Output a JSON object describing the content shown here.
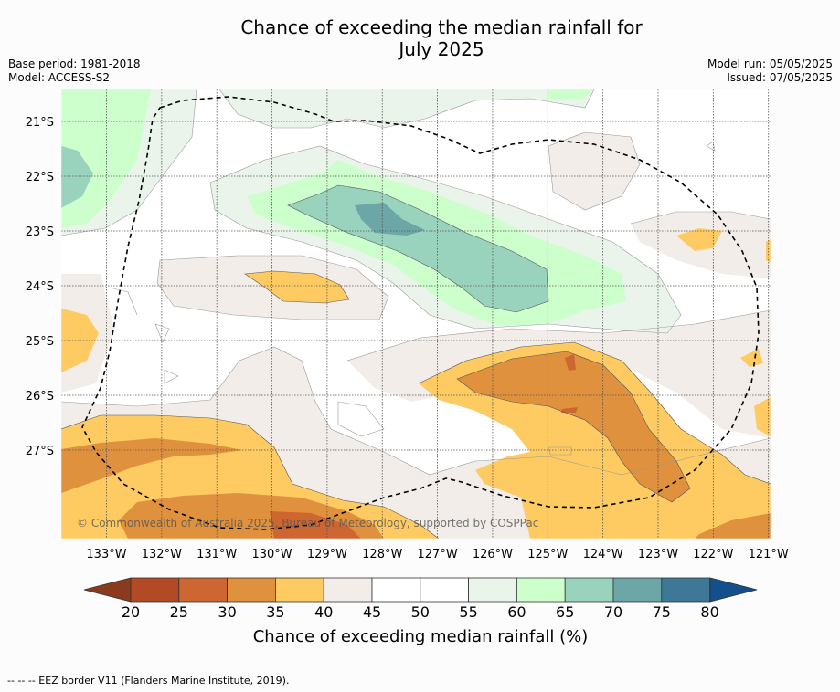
{
  "header": {
    "title_line1": "Chance of exceeding the median rainfall for",
    "title_line2": "July 2025"
  },
  "meta_left": {
    "base_period": "Base period: 1981-2018",
    "model": "Model: ACCESS-S2"
  },
  "meta_right": {
    "model_run": "Model run: 05/05/2025",
    "issued": "Issued: 07/05/2025"
  },
  "map": {
    "lon_labels": [
      "133°W",
      "132°W",
      "131°W",
      "130°W",
      "129°W",
      "128°W",
      "127°W",
      "126°W",
      "125°W",
      "124°W",
      "123°W",
      "122°W",
      "121°W"
    ],
    "lat_labels": [
      "21°S",
      "22°S",
      "23°S",
      "24°S",
      "25°S",
      "26°S",
      "27°S"
    ],
    "copyright": "© Commonwealth of Australia 2025, Bureau of Meteorology, supported by COSPPac",
    "colors": {
      "p20": "#b34a26",
      "p25": "#cd6630",
      "p30": "#e0913d",
      "p35": "#fecb62",
      "p40": "#f2ede8",
      "p45": "#ffffff",
      "p55": "#eaf4ea",
      "p60": "#ccffcc",
      "p65": "#99d2bd",
      "p70": "#6ca6a6",
      "p75": "#3e7897",
      "low": "#8b3a1d",
      "high": "#134f8c"
    }
  },
  "colorbar": {
    "ticks": [
      "20",
      "25",
      "30",
      "35",
      "40",
      "45",
      "50",
      "55",
      "60",
      "65",
      "70",
      "75",
      "80"
    ],
    "colors": [
      "#b34a26",
      "#cd6630",
      "#e0913d",
      "#fecb62",
      "#f2ede8",
      "#ffffff",
      "#ffffff",
      "#eaf4ea",
      "#ccffcc",
      "#99d2bd",
      "#6ca6a6",
      "#3e7897"
    ],
    "under_color": "#8b3a1d",
    "over_color": "#134f8c",
    "label": "Chance of exceeding median rainfall (%)"
  },
  "footnote": "-- -- -- EEZ border V11 (Flanders Marine Institute, 2019)."
}
